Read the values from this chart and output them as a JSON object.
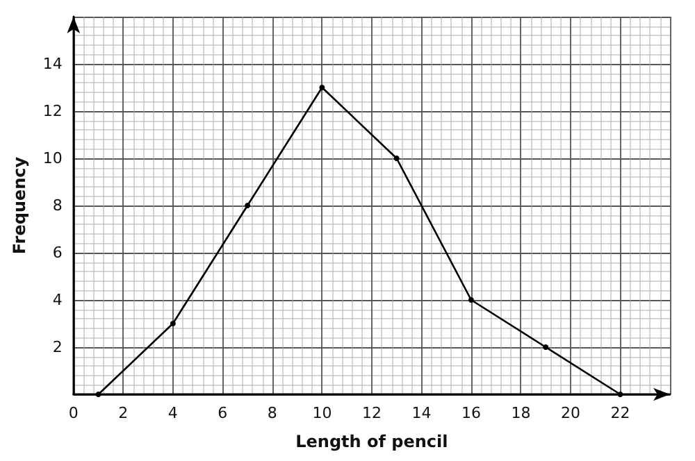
{
  "chart_data": {
    "type": "line",
    "xlabel": "Length of pencil",
    "ylabel": "Frequency",
    "x": [
      1,
      4,
      7,
      10,
      13,
      16,
      19,
      22
    ],
    "series": [
      {
        "color": "#000000",
        "values": [
          0,
          3,
          8,
          13,
          10,
          4,
          2,
          0
        ]
      }
    ],
    "xlim": [
      0,
      24
    ],
    "xticks": [
      0,
      2,
      4,
      6,
      8,
      10,
      12,
      14,
      16,
      18,
      20,
      22,
      {
        "value": 24,
        "label": null
      }
    ],
    "ylim": [
      0,
      16
    ],
    "yticks": [
      {
        "value": 0,
        "label": null
      },
      2,
      4,
      6,
      8,
      10,
      12,
      14,
      {
        "value": 16,
        "label": null
      }
    ],
    "grid": true,
    "marker": "circle",
    "line_style": "solid"
  }
}
